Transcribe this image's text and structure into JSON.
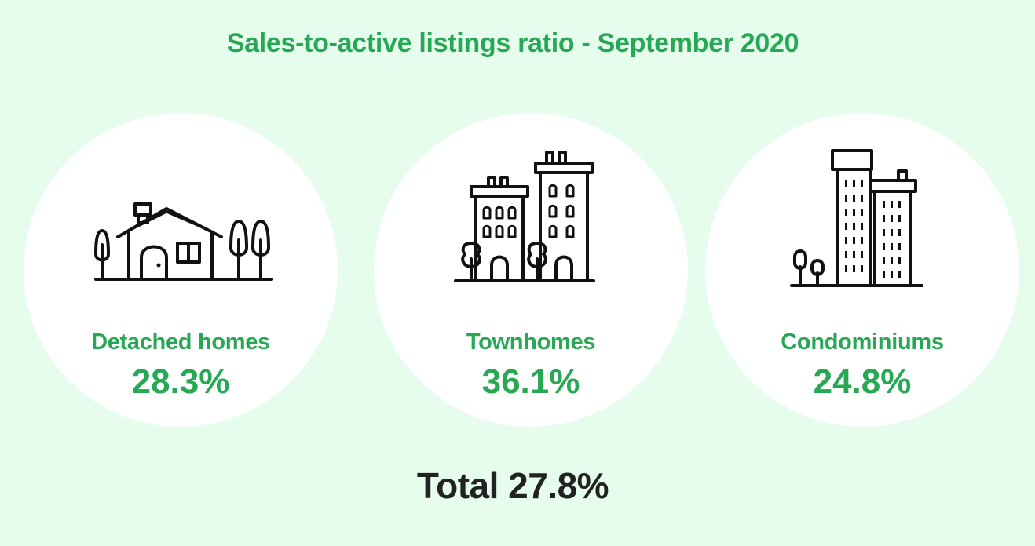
{
  "title": "Sales-to-active listings ratio - September 2020",
  "categories": [
    {
      "label": "Detached homes",
      "value": "28.3%",
      "icon": "house-icon"
    },
    {
      "label": "Townhomes",
      "value": "36.1%",
      "icon": "townhouses-icon"
    },
    {
      "label": "Condominiums",
      "value": "24.8%",
      "icon": "condo-towers-icon"
    }
  ],
  "total": "Total 27.8%",
  "colors": {
    "background": "#e6fdee",
    "accent": "#27a855",
    "circle": "#ffffff",
    "total_text": "#222222"
  }
}
